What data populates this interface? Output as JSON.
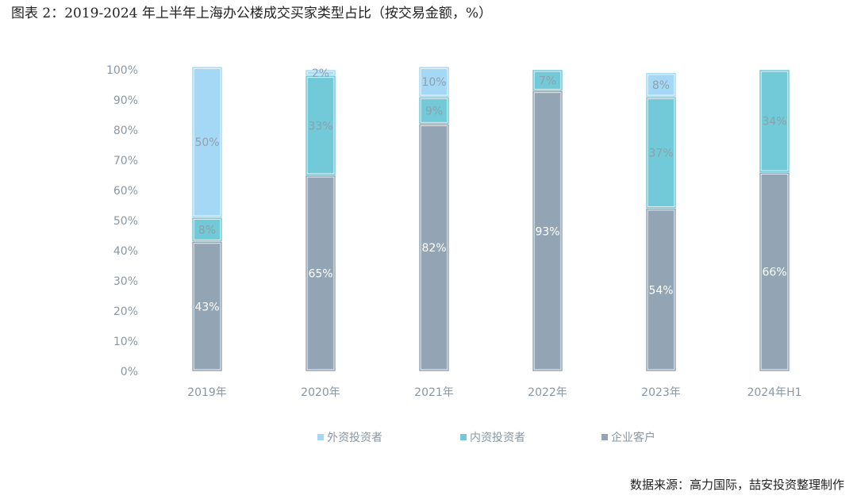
{
  "figure_title": "图表 2：2019-2024 年上半年上海办公楼成交买家类型占比（按交易金额，%）",
  "source": "数据来源：高力国际，喆安投资整理制作",
  "colors": {
    "foreign": "#a5d8f5",
    "domestic": "#72c9d8",
    "corporate": "#93a5b4",
    "axis_text": "#8a97a3",
    "label_light": "#8fa0ae",
    "label_dark": "#ffffff"
  },
  "chart_data": {
    "type": "bar",
    "stacked": true,
    "categories": [
      "2019年",
      "2020年",
      "2021年",
      "2022年",
      "2023年",
      "2024年H1"
    ],
    "series": [
      {
        "name": "企业客户",
        "key": "corporate",
        "values": [
          43,
          65,
          82,
          93,
          54,
          66
        ],
        "labels": [
          "43%",
          "65%",
          "82%",
          "93%",
          "54%",
          "66%"
        ]
      },
      {
        "name": "内资投资者",
        "key": "domestic",
        "values": [
          8,
          33,
          9,
          7,
          37,
          34
        ],
        "labels": [
          "8%",
          "33%",
          "9%",
          "7%",
          "37%",
          "34%"
        ]
      },
      {
        "name": "外资投资者",
        "key": "foreign",
        "values": [
          50,
          2,
          10,
          0,
          8,
          0
        ],
        "labels": [
          "50%",
          "2%",
          "10%",
          "",
          "8%",
          ""
        ]
      }
    ],
    "y_ticks": [
      "0%",
      "10%",
      "20%",
      "30%",
      "40%",
      "50%",
      "60%",
      "70%",
      "80%",
      "90%",
      "100%"
    ],
    "ylim": [
      0,
      100
    ],
    "grid": false,
    "legend": {
      "position": "bottom",
      "items": [
        {
          "label": "外资投资者",
          "key": "foreign"
        },
        {
          "label": "内资投资者",
          "key": "domestic"
        },
        {
          "label": "企业客户",
          "key": "corporate"
        }
      ]
    }
  }
}
